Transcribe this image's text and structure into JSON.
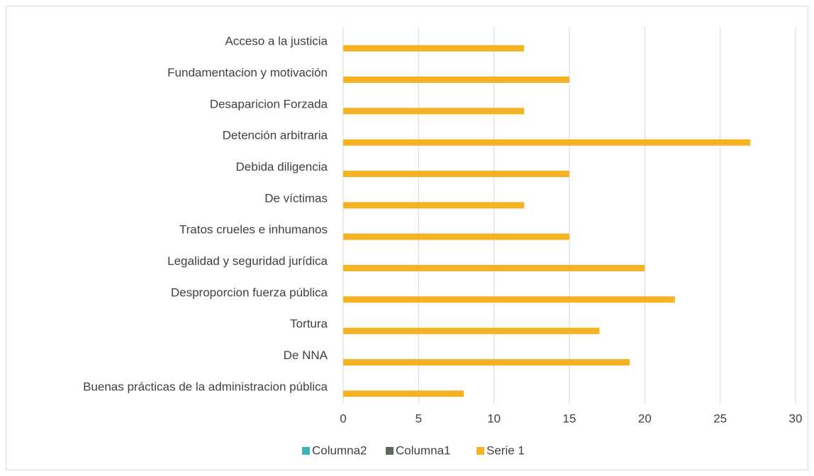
{
  "chart_data": {
    "type": "bar",
    "orientation": "horizontal",
    "categories": [
      "Acceso a la justicia",
      "Fundamentacion y motivación",
      "Desaparicion Forzada",
      "Detención arbitraria",
      "Debida diligencia",
      "De víctimas",
      "Tratos crueles e inhumanos",
      "Legalidad y seguridad jurídica",
      "Desproporcion fuerza pública",
      "Tortura",
      "De NNA",
      "Buenas prácticas de la administracion pública"
    ],
    "series": [
      {
        "name": "Columna2",
        "color": "#3fb5b5",
        "values": [
          null,
          null,
          null,
          null,
          null,
          null,
          null,
          null,
          null,
          null,
          null,
          null
        ]
      },
      {
        "name": "Columna1",
        "color": "#5e6a57",
        "values": [
          null,
          null,
          null,
          null,
          null,
          null,
          null,
          null,
          null,
          null,
          null,
          null
        ]
      },
      {
        "name": "Serie 1",
        "color": "#f5b323",
        "values": [
          12,
          15,
          12,
          27,
          15,
          12,
          15,
          20,
          22,
          17,
          19,
          8
        ]
      }
    ],
    "xlim": [
      0,
      30
    ],
    "xticks": [
      0,
      5,
      10,
      15,
      20,
      25,
      30
    ],
    "grid": true,
    "legend": "bottom"
  }
}
